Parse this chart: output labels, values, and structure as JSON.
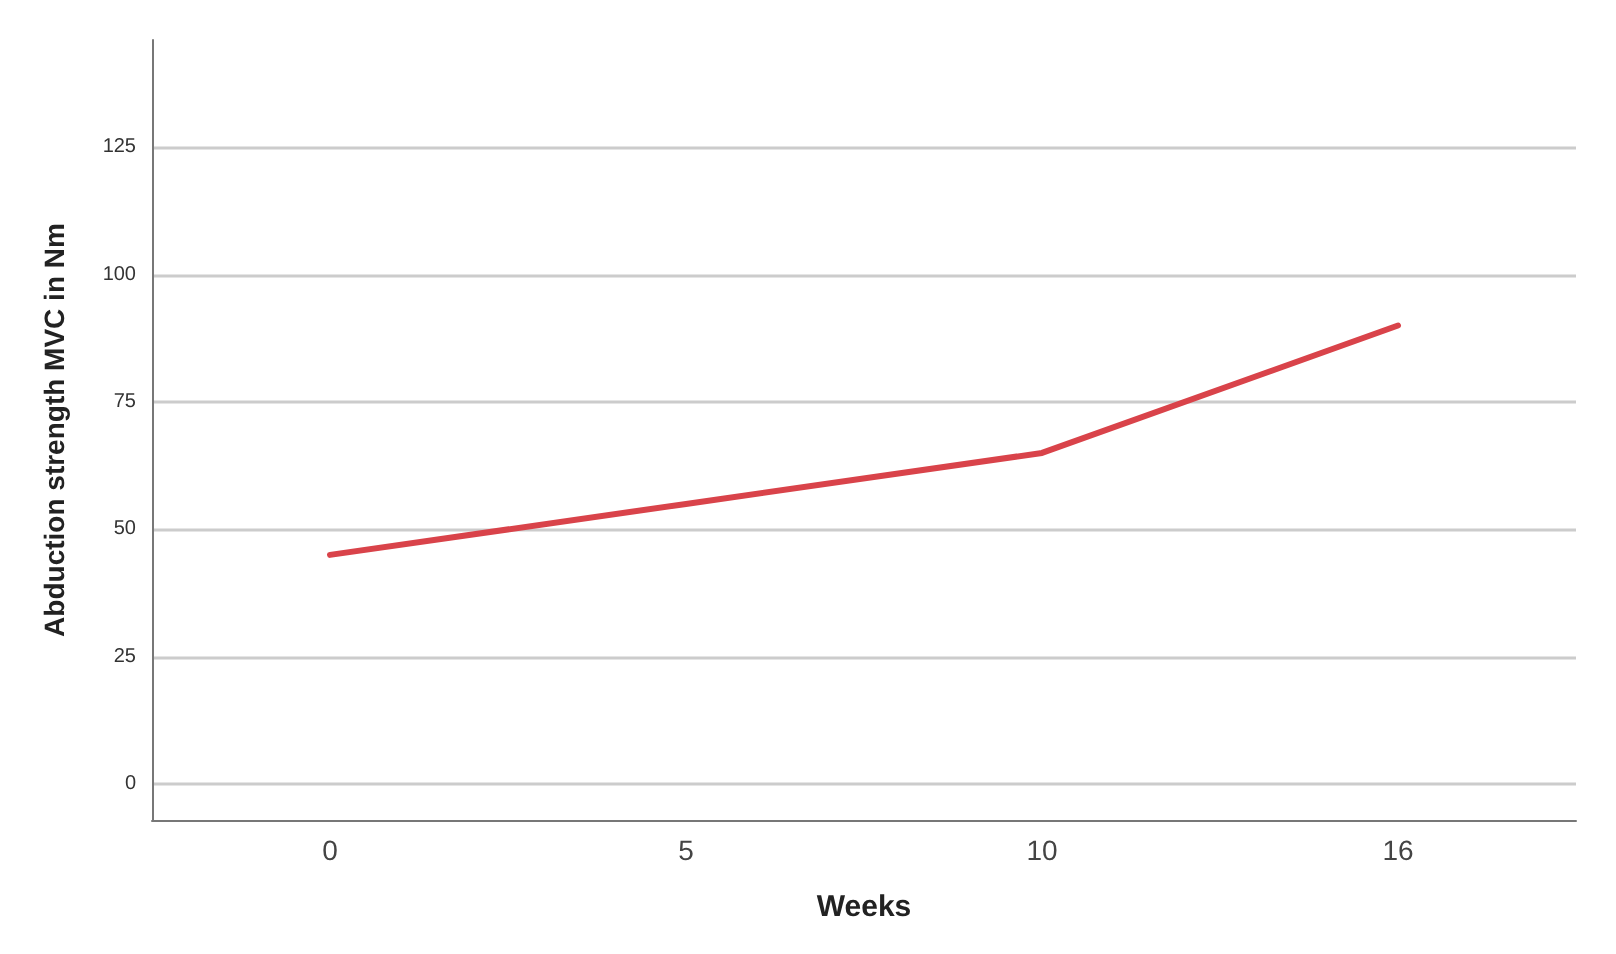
{
  "chart_data": {
    "type": "line",
    "xlabel": "Weeks",
    "ylabel": "Abduction strength MVC in Nm",
    "categories": [
      "0",
      "5",
      "10",
      "16"
    ],
    "series": [
      {
        "color": "#d9434a",
        "values": [
          45,
          55,
          65,
          90
        ]
      }
    ],
    "ylim": [
      -7,
      146
    ],
    "yticks": [
      0,
      25,
      50,
      75,
      100,
      125
    ],
    "grid": "y",
    "marker": "none",
    "line_style": "solid"
  }
}
